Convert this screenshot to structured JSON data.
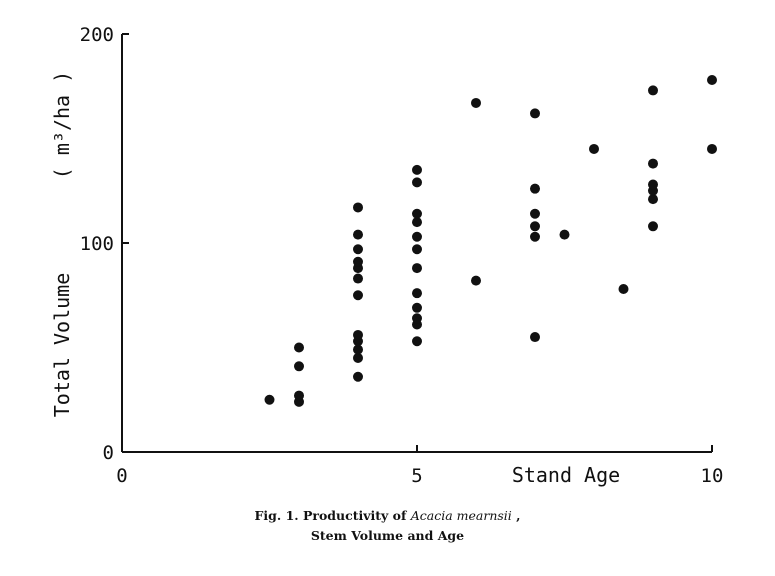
{
  "chart_data": {
    "type": "scatter",
    "xlabel": "Stand Age",
    "ylabel": "Total Volume",
    "ylabel_unit": "( m³/ha )",
    "xlim": [
      0,
      10
    ],
    "ylim": [
      0,
      200
    ],
    "x_ticks": [
      {
        "value": 0,
        "label": "0"
      },
      {
        "value": 5,
        "label": "5"
      },
      {
        "value": 10,
        "label": "10"
      }
    ],
    "y_ticks": [
      {
        "value": 0,
        "label": "0"
      },
      {
        "value": 100,
        "label": "100"
      },
      {
        "value": 200,
        "label": "200"
      }
    ],
    "grid": false,
    "points": [
      {
        "x": 2.5,
        "y": 25
      },
      {
        "x": 3,
        "y": 24
      },
      {
        "x": 3,
        "y": 27
      },
      {
        "x": 3,
        "y": 41
      },
      {
        "x": 3,
        "y": 50
      },
      {
        "x": 4,
        "y": 36
      },
      {
        "x": 4,
        "y": 45
      },
      {
        "x": 4,
        "y": 49
      },
      {
        "x": 4,
        "y": 53
      },
      {
        "x": 4,
        "y": 56
      },
      {
        "x": 4,
        "y": 75
      },
      {
        "x": 4,
        "y": 83
      },
      {
        "x": 4,
        "y": 88
      },
      {
        "x": 4,
        "y": 91
      },
      {
        "x": 4,
        "y": 97
      },
      {
        "x": 4,
        "y": 104
      },
      {
        "x": 4,
        "y": 117
      },
      {
        "x": 5,
        "y": 53
      },
      {
        "x": 5,
        "y": 61
      },
      {
        "x": 5,
        "y": 64
      },
      {
        "x": 5,
        "y": 69
      },
      {
        "x": 5,
        "y": 76
      },
      {
        "x": 5,
        "y": 88
      },
      {
        "x": 5,
        "y": 97
      },
      {
        "x": 5,
        "y": 103
      },
      {
        "x": 5,
        "y": 110
      },
      {
        "x": 5,
        "y": 114
      },
      {
        "x": 5,
        "y": 129
      },
      {
        "x": 5,
        "y": 135
      },
      {
        "x": 6,
        "y": 82
      },
      {
        "x": 6,
        "y": 167
      },
      {
        "x": 7,
        "y": 55
      },
      {
        "x": 7,
        "y": 103
      },
      {
        "x": 7,
        "y": 108
      },
      {
        "x": 7,
        "y": 114
      },
      {
        "x": 7,
        "y": 126
      },
      {
        "x": 7,
        "y": 162
      },
      {
        "x": 7.5,
        "y": 104
      },
      {
        "x": 8,
        "y": 145
      },
      {
        "x": 8.5,
        "y": 78
      },
      {
        "x": 9,
        "y": 108
      },
      {
        "x": 9,
        "y": 121
      },
      {
        "x": 9,
        "y": 125
      },
      {
        "x": 9,
        "y": 128
      },
      {
        "x": 9,
        "y": 138
      },
      {
        "x": 9,
        "y": 173
      },
      {
        "x": 10,
        "y": 145
      },
      {
        "x": 10,
        "y": 178
      }
    ]
  },
  "caption": {
    "line1_prefix": "Fig. 1.   Productivity of ",
    "line1_species": "Acacia mearnsii",
    "line1_suffix": " ,",
    "line2": "Stem Volume and Age"
  }
}
